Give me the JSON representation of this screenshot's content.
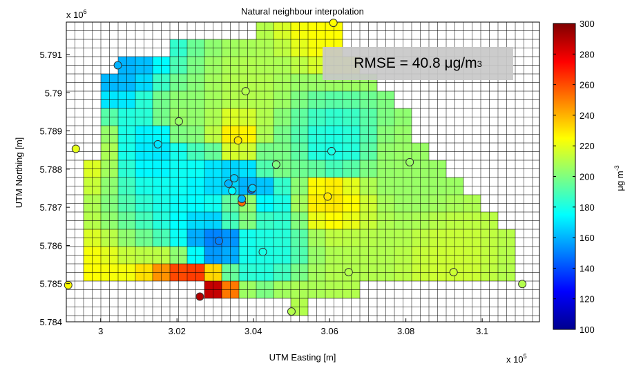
{
  "chart_data": {
    "type": "heatmap",
    "title": "Natural neighbour interpolation",
    "xlabel": "UTM Easting [m]",
    "ylabel": "UTM Northing [m]",
    "x_multiplier": "x 10",
    "x_multiplier_exp": "5",
    "y_multiplier": "x 10",
    "y_multiplier_exp": "6",
    "xlim": [
      299100,
      311500
    ],
    "ylim": [
      5784000,
      5791850
    ],
    "xticks": [
      300000,
      302000,
      304000,
      306000,
      308000,
      310000
    ],
    "xtick_labels": [
      "3",
      "3.02",
      "3.04",
      "3.06",
      "3.08",
      "3.1"
    ],
    "yticks": [
      5784000,
      5785000,
      5786000,
      5787000,
      5788000,
      5789000,
      5790000,
      5791000
    ],
    "ytick_labels": [
      "5.784",
      "5.785",
      "5.786",
      "5.787",
      "5.788",
      "5.789",
      "5.79",
      "5.791"
    ],
    "colorbar": {
      "label": "μg m",
      "label_exp": "-3",
      "range": [
        100,
        300
      ],
      "ticks": [
        "100",
        "120",
        "140",
        "160",
        "180",
        "200",
        "220",
        "240",
        "260",
        "280",
        "300"
      ],
      "colormap": "jet"
    },
    "grid": true,
    "annotation": {
      "text": "RMSE = 40.8 μg/m",
      "sup": "3",
      "placement": "top-right"
    },
    "stations": [
      {
        "x": 306100,
        "y": 5791830,
        "value": 225
      },
      {
        "x": 300450,
        "y": 5790720,
        "value": 160
      },
      {
        "x": 303800,
        "y": 5790040,
        "value": 210
      },
      {
        "x": 302050,
        "y": 5789250,
        "value": 205
      },
      {
        "x": 301500,
        "y": 5788650,
        "value": 170
      },
      {
        "x": 303600,
        "y": 5788750,
        "value": 230
      },
      {
        "x": 299350,
        "y": 5788530,
        "value": 220
      },
      {
        "x": 306050,
        "y": 5788470,
        "value": 180
      },
      {
        "x": 304600,
        "y": 5788120,
        "value": 200
      },
      {
        "x": 308100,
        "y": 5788180,
        "value": 205
      },
      {
        "x": 303500,
        "y": 5787760,
        "value": 165
      },
      {
        "x": 303350,
        "y": 5787620,
        "value": 160
      },
      {
        "x": 303450,
        "y": 5787430,
        "value": 175
      },
      {
        "x": 303950,
        "y": 5787460,
        "value": 145
      },
      {
        "x": 303980,
        "y": 5787500,
        "value": 165
      },
      {
        "x": 305950,
        "y": 5787280,
        "value": 230
      },
      {
        "x": 303700,
        "y": 5787130,
        "value": 255
      },
      {
        "x": 303700,
        "y": 5787220,
        "value": 160
      },
      {
        "x": 303100,
        "y": 5786120,
        "value": 150
      },
      {
        "x": 304250,
        "y": 5785830,
        "value": 180
      },
      {
        "x": 306500,
        "y": 5785300,
        "value": 210
      },
      {
        "x": 309250,
        "y": 5785300,
        "value": 215
      },
      {
        "x": 299150,
        "y": 5784960,
        "value": 225
      },
      {
        "x": 311050,
        "y": 5784990,
        "value": 210
      },
      {
        "x": 302600,
        "y": 5784660,
        "value": 290
      },
      {
        "x": 305000,
        "y": 5784270,
        "value": 210
      }
    ]
  }
}
